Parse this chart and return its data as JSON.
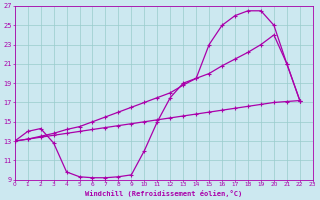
{
  "xlabel": "Windchill (Refroidissement éolien,°C)",
  "ylabel": "",
  "bg_color": "#cce8f0",
  "line_color": "#aa00aa",
  "grid_color": "#99cccc",
  "xlim": [
    0,
    23
  ],
  "ylim": [
    9,
    27
  ],
  "xticks": [
    0,
    1,
    2,
    3,
    4,
    5,
    6,
    7,
    8,
    9,
    10,
    11,
    12,
    13,
    14,
    15,
    16,
    17,
    18,
    19,
    20,
    21,
    22,
    23
  ],
  "yticks": [
    9,
    11,
    13,
    15,
    17,
    19,
    21,
    23,
    25,
    27
  ],
  "line1_x": [
    0,
    1,
    2,
    3,
    4,
    5,
    6,
    7,
    8,
    9,
    10,
    11,
    12,
    13,
    14,
    15,
    16,
    17,
    18,
    19,
    20,
    21,
    22
  ],
  "line1_y": [
    13.0,
    13.2,
    13.4,
    13.6,
    13.8,
    14.0,
    14.2,
    14.4,
    14.6,
    14.8,
    15.0,
    15.2,
    15.4,
    15.6,
    15.8,
    16.0,
    16.2,
    16.4,
    16.6,
    16.8,
    17.0,
    17.1,
    17.2
  ],
  "line2_x": [
    0,
    1,
    2,
    3,
    4,
    5,
    6,
    7,
    8,
    9,
    10,
    11,
    12,
    13,
    14,
    15,
    16,
    17,
    18,
    19,
    20,
    21,
    22
  ],
  "line2_y": [
    13.0,
    13.2,
    13.5,
    13.8,
    14.2,
    14.5,
    15.0,
    15.5,
    16.0,
    16.5,
    17.0,
    17.5,
    18.0,
    18.8,
    19.5,
    20.0,
    20.8,
    21.5,
    22.2,
    23.0,
    24.0,
    21.0,
    17.2
  ],
  "line3_x": [
    0,
    1,
    2,
    3,
    4,
    5,
    6,
    7,
    8,
    9,
    10,
    11,
    12,
    13,
    14,
    15,
    16,
    17,
    18,
    19,
    20,
    21,
    22
  ],
  "line3_y": [
    13.0,
    14.0,
    14.3,
    12.8,
    9.8,
    9.3,
    9.2,
    9.2,
    9.3,
    9.5,
    12.0,
    15.0,
    17.5,
    19.0,
    19.5,
    23.0,
    25.0,
    26.0,
    26.5,
    26.5,
    25.0,
    21.0,
    17.2
  ],
  "marker": "+"
}
